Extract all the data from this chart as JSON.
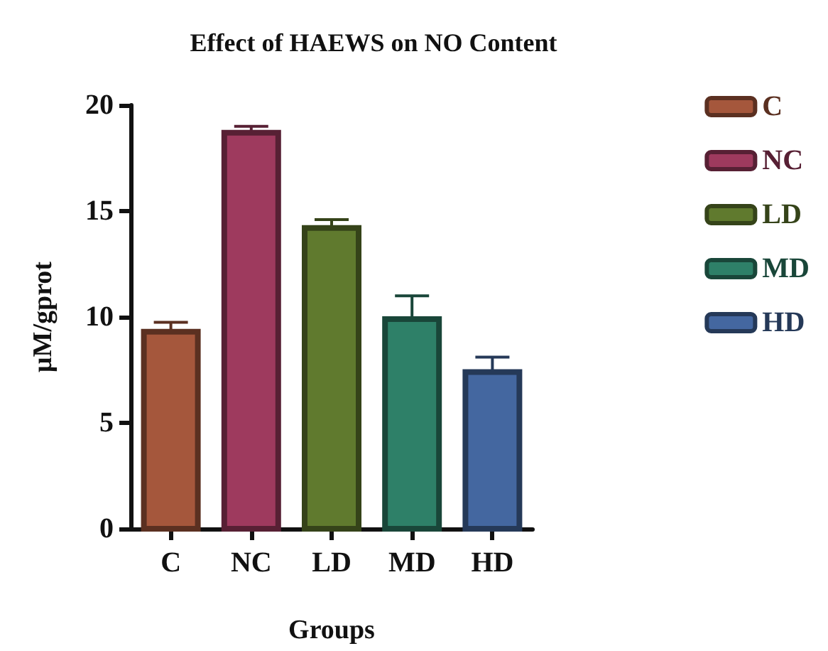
{
  "chart_data": {
    "type": "bar",
    "title": "Effect of HAEWS on NO Content",
    "xlabel": "Groups",
    "ylabel": "μM/gprot",
    "categories": [
      "C",
      "NC",
      "LD",
      "MD",
      "HD"
    ],
    "series": [
      {
        "name": "C",
        "color": "#a5573c",
        "values": [
          9.3,
          null,
          null,
          null,
          null
        ],
        "errors": [
          [
            9.3,
            9.75
          ],
          null,
          null,
          null,
          null
        ]
      },
      {
        "name": "NC",
        "color": "#9e3a5e",
        "values": [
          null,
          18.7,
          null,
          null,
          null
        ],
        "errors": [
          null,
          [
            18.7,
            19.0
          ],
          null,
          null,
          null
        ]
      },
      {
        "name": "LD",
        "color": "#607a2e",
        "values": [
          null,
          null,
          14.2,
          null,
          null
        ],
        "errors": [
          null,
          null,
          [
            14.2,
            14.6
          ],
          null,
          null
        ]
      },
      {
        "name": "MD",
        "color": "#2e8068",
        "values": [
          null,
          null,
          null,
          9.9,
          null
        ],
        "errors": [
          null,
          null,
          null,
          [
            9.9,
            11.0
          ],
          null
        ]
      },
      {
        "name": "HD",
        "color": "#4467a0",
        "values": [
          null,
          null,
          null,
          null,
          7.4
        ],
        "errors": [
          null,
          null,
          null,
          null,
          [
            7.4,
            8.1
          ]
        ]
      }
    ],
    "ylim": [
      0,
      20
    ],
    "yticks": [
      0,
      5,
      10,
      15,
      20
    ],
    "grid": false,
    "legend": "right"
  }
}
